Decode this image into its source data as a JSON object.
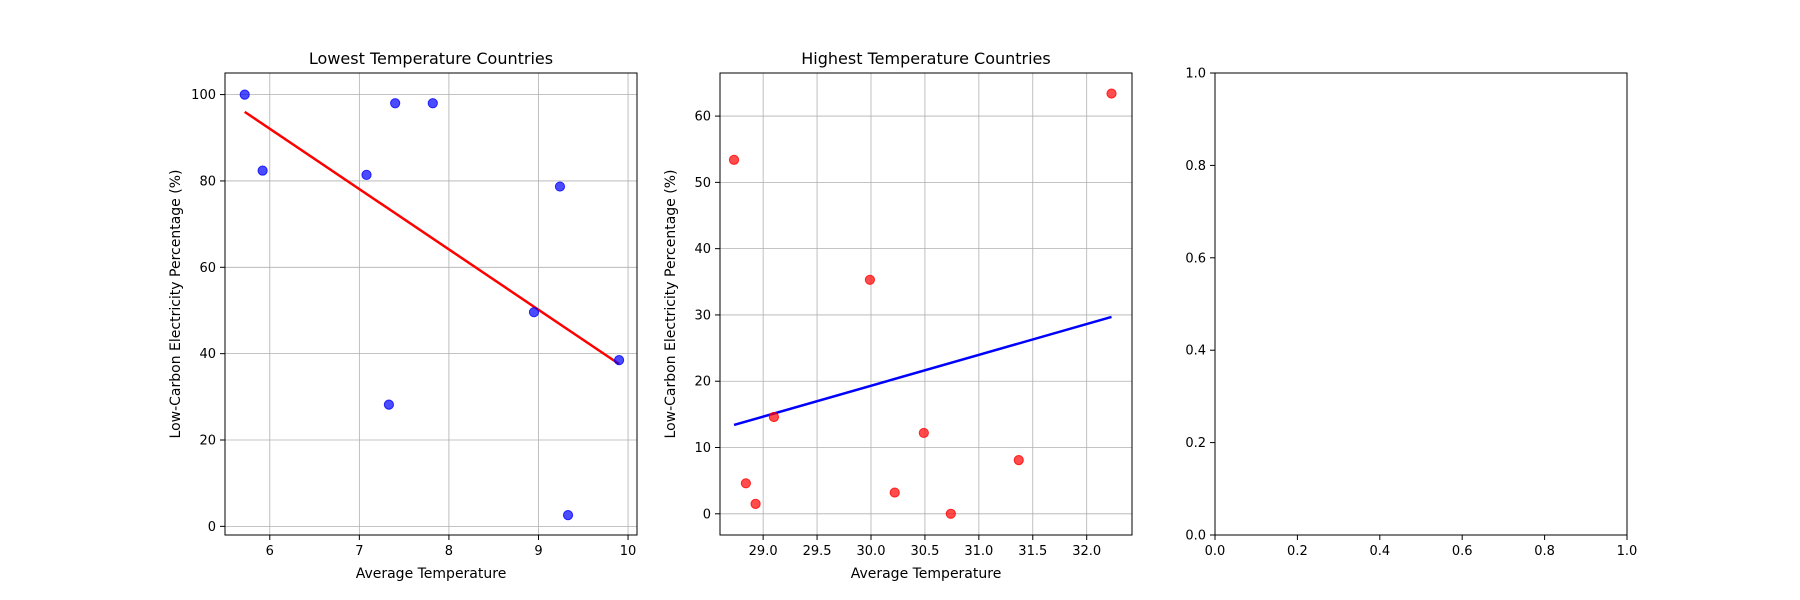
{
  "chart_data": [
    {
      "type": "scatter",
      "title": "Lowest Temperature Countries",
      "xlabel": "Average Temperature",
      "ylabel": "Low-Carbon Electricity Percentage (%)",
      "xlim": [
        5.5,
        10.1
      ],
      "ylim": [
        -2,
        105
      ],
      "xticks": [
        6,
        7,
        8,
        9,
        10
      ],
      "yticks": [
        0,
        20,
        40,
        60,
        80,
        100
      ],
      "xtick_labels": [
        "6",
        "7",
        "8",
        "9",
        "10"
      ],
      "ytick_labels": [
        "0",
        "20",
        "40",
        "60",
        "80",
        "100"
      ],
      "grid": true,
      "point_color": "#0000ff",
      "line_color": "#ff0000",
      "points": [
        {
          "x": 5.72,
          "y": 100
        },
        {
          "x": 5.92,
          "y": 82.4
        },
        {
          "x": 7.08,
          "y": 81.4
        },
        {
          "x": 7.33,
          "y": 28.2
        },
        {
          "x": 7.4,
          "y": 98.0
        },
        {
          "x": 7.82,
          "y": 98.0
        },
        {
          "x": 8.95,
          "y": 49.6
        },
        {
          "x": 9.24,
          "y": 78.7
        },
        {
          "x": 9.33,
          "y": 2.6
        },
        {
          "x": 9.9,
          "y": 38.5
        }
      ],
      "trend_line": [
        {
          "x": 5.72,
          "y": 96.0
        },
        {
          "x": 9.9,
          "y": 37.6
        }
      ]
    },
    {
      "type": "scatter",
      "title": "Highest Temperature Countries",
      "xlabel": "Average Temperature",
      "ylabel": "Low-Carbon Electricity Percentage (%)",
      "xlim": [
        28.6,
        32.42
      ],
      "ylim": [
        -3.2,
        66.5
      ],
      "xticks": [
        29.0,
        29.5,
        30.0,
        30.5,
        31.0,
        31.5,
        32.0
      ],
      "yticks": [
        0,
        10,
        20,
        30,
        40,
        50,
        60
      ],
      "xtick_labels": [
        "29.0",
        "29.5",
        "30.0",
        "30.5",
        "31.0",
        "31.5",
        "32.0"
      ],
      "ytick_labels": [
        "0",
        "10",
        "20",
        "30",
        "40",
        "50",
        "60"
      ],
      "grid": true,
      "point_color": "#ff0000",
      "line_color": "#0000ff",
      "points": [
        {
          "x": 28.73,
          "y": 53.4
        },
        {
          "x": 28.84,
          "y": 4.6
        },
        {
          "x": 28.93,
          "y": 1.5
        },
        {
          "x": 29.1,
          "y": 14.6
        },
        {
          "x": 29.99,
          "y": 35.3
        },
        {
          "x": 30.22,
          "y": 3.2
        },
        {
          "x": 30.49,
          "y": 12.2
        },
        {
          "x": 30.74,
          "y": 0.0
        },
        {
          "x": 31.37,
          "y": 8.1
        },
        {
          "x": 32.23,
          "y": 63.4
        }
      ],
      "trend_line": [
        {
          "x": 28.73,
          "y": 13.4
        },
        {
          "x": 32.23,
          "y": 29.7
        }
      ]
    },
    {
      "type": "scatter",
      "title": "",
      "xlabel": "",
      "ylabel": "",
      "xlim": [
        0,
        1
      ],
      "ylim": [
        0,
        1
      ],
      "xticks": [
        0,
        0.2,
        0.4,
        0.6,
        0.8,
        1.0
      ],
      "yticks": [
        0,
        0.2,
        0.4,
        0.6,
        0.8,
        1.0
      ],
      "xtick_labels": [
        "0.0",
        "0.2",
        "0.4",
        "0.6",
        "0.8",
        "1.0"
      ],
      "ytick_labels": [
        "0.0",
        "0.2",
        "0.4",
        "0.6",
        "0.8",
        "1.0"
      ],
      "grid": false,
      "points": [],
      "trend_line": []
    }
  ]
}
